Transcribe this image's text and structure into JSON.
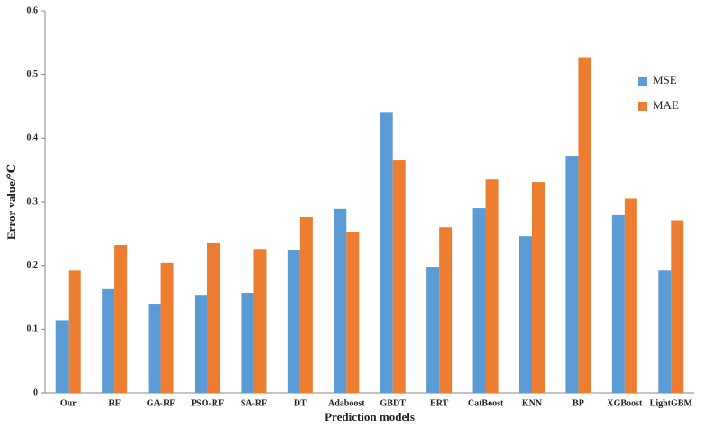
{
  "chart_data": {
    "type": "bar",
    "x_label": "Prediction models",
    "y_label": "Error value/℃",
    "categories": [
      "Our",
      "RF",
      "GA-RF",
      "PSO-RF",
      "SA-RF",
      "DT",
      "Adaboost",
      "GBDT",
      "ERT",
      "CatBoost",
      "KNN",
      "BP",
      "XGBoost",
      "LightGBM"
    ],
    "series": [
      {
        "name": "MSE",
        "color": "#5b9bd5",
        "values": [
          0.114,
          0.163,
          0.14,
          0.154,
          0.157,
          0.225,
          0.289,
          0.441,
          0.198,
          0.29,
          0.246,
          0.372,
          0.279,
          0.192
        ]
      },
      {
        "name": "MAE",
        "color": "#ed7d31",
        "values": [
          0.192,
          0.232,
          0.204,
          0.235,
          0.226,
          0.276,
          0.253,
          0.365,
          0.26,
          0.335,
          0.331,
          0.527,
          0.305,
          0.271
        ]
      }
    ],
    "ylim": [
      0,
      0.6
    ],
    "yticks": [
      0,
      0.1,
      0.2,
      0.3,
      0.4,
      0.5,
      0.6
    ],
    "grid": false,
    "legend": "right"
  }
}
